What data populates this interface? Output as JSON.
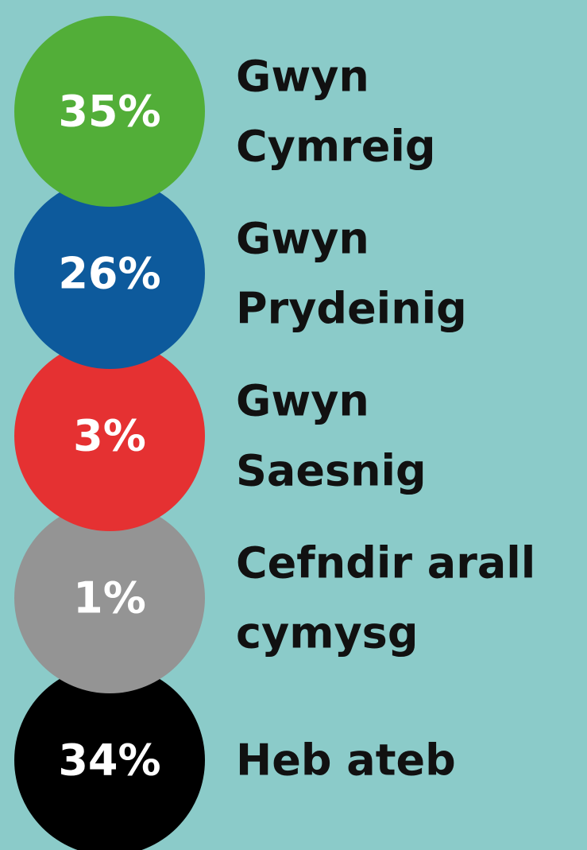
{
  "items": [
    {
      "value": "35%",
      "color": "#52ae38",
      "label": [
        "Gwyn",
        "Cymreig"
      ]
    },
    {
      "value": "26%",
      "color": "#0d5a9c",
      "label": [
        "Gwyn",
        "Prydeinig"
      ]
    },
    {
      "value": "3%",
      "color": "#e53132",
      "label": [
        "Gwyn",
        "Saesnig"
      ]
    },
    {
      "value": "1%",
      "color": "#949494",
      "label": [
        "Cefndir arall",
        "cymysg"
      ]
    },
    {
      "value": "34%",
      "color": "#000000",
      "label": [
        "Heb ateb"
      ]
    }
  ]
}
